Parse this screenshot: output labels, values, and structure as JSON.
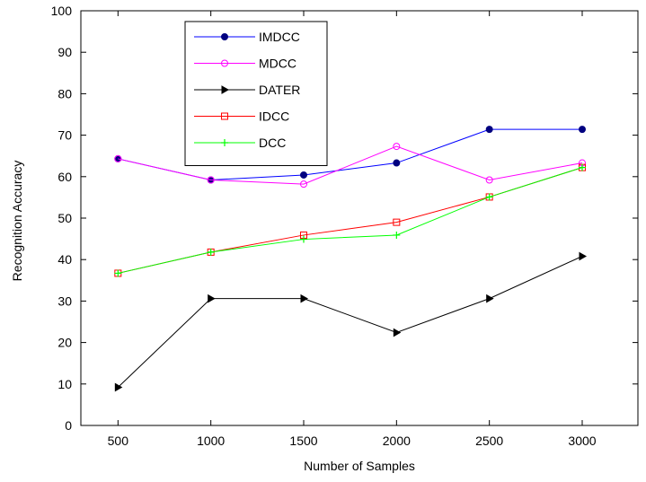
{
  "chart_data": {
    "type": "line",
    "title": "",
    "xlabel": "Number of Samples",
    "ylabel": "Recognition Accuracy",
    "x": [
      500,
      1000,
      1500,
      2000,
      2500,
      3000
    ],
    "xlim": [
      300,
      3300
    ],
    "ylim": [
      0,
      100
    ],
    "xticks": [
      500,
      1000,
      1500,
      2000,
      2500,
      3000
    ],
    "yticks": [
      0,
      10,
      20,
      30,
      40,
      50,
      60,
      70,
      80,
      90,
      100
    ],
    "grid": false,
    "legend_position": "top-left",
    "series": [
      {
        "name": "IMDCC",
        "color": "#0000ff",
        "marker": "filled-circle",
        "marker_color": "#000080",
        "values": [
          64.3,
          59.2,
          60.4,
          63.3,
          71.4,
          71.4
        ]
      },
      {
        "name": "MDCC",
        "color": "#ff00ff",
        "marker": "open-circle",
        "marker_color": "#ff00ff",
        "values": [
          64.3,
          59.2,
          58.2,
          67.3,
          59.2,
          63.3
        ]
      },
      {
        "name": "DATER",
        "color": "#000000",
        "marker": "triangle-right",
        "marker_color": "#000000",
        "values": [
          9.2,
          30.6,
          30.6,
          22.4,
          30.6,
          40.8
        ]
      },
      {
        "name": "IDCC",
        "color": "#ff0000",
        "marker": "open-square",
        "marker_color": "#ff0000",
        "values": [
          36.7,
          41.8,
          45.9,
          49.0,
          55.1,
          62.2
        ]
      },
      {
        "name": "DCC",
        "color": "#00ff00",
        "marker": "plus",
        "marker_color": "#00ff00",
        "values": [
          36.7,
          41.8,
          44.9,
          45.9,
          55.1,
          62.2
        ]
      }
    ]
  }
}
